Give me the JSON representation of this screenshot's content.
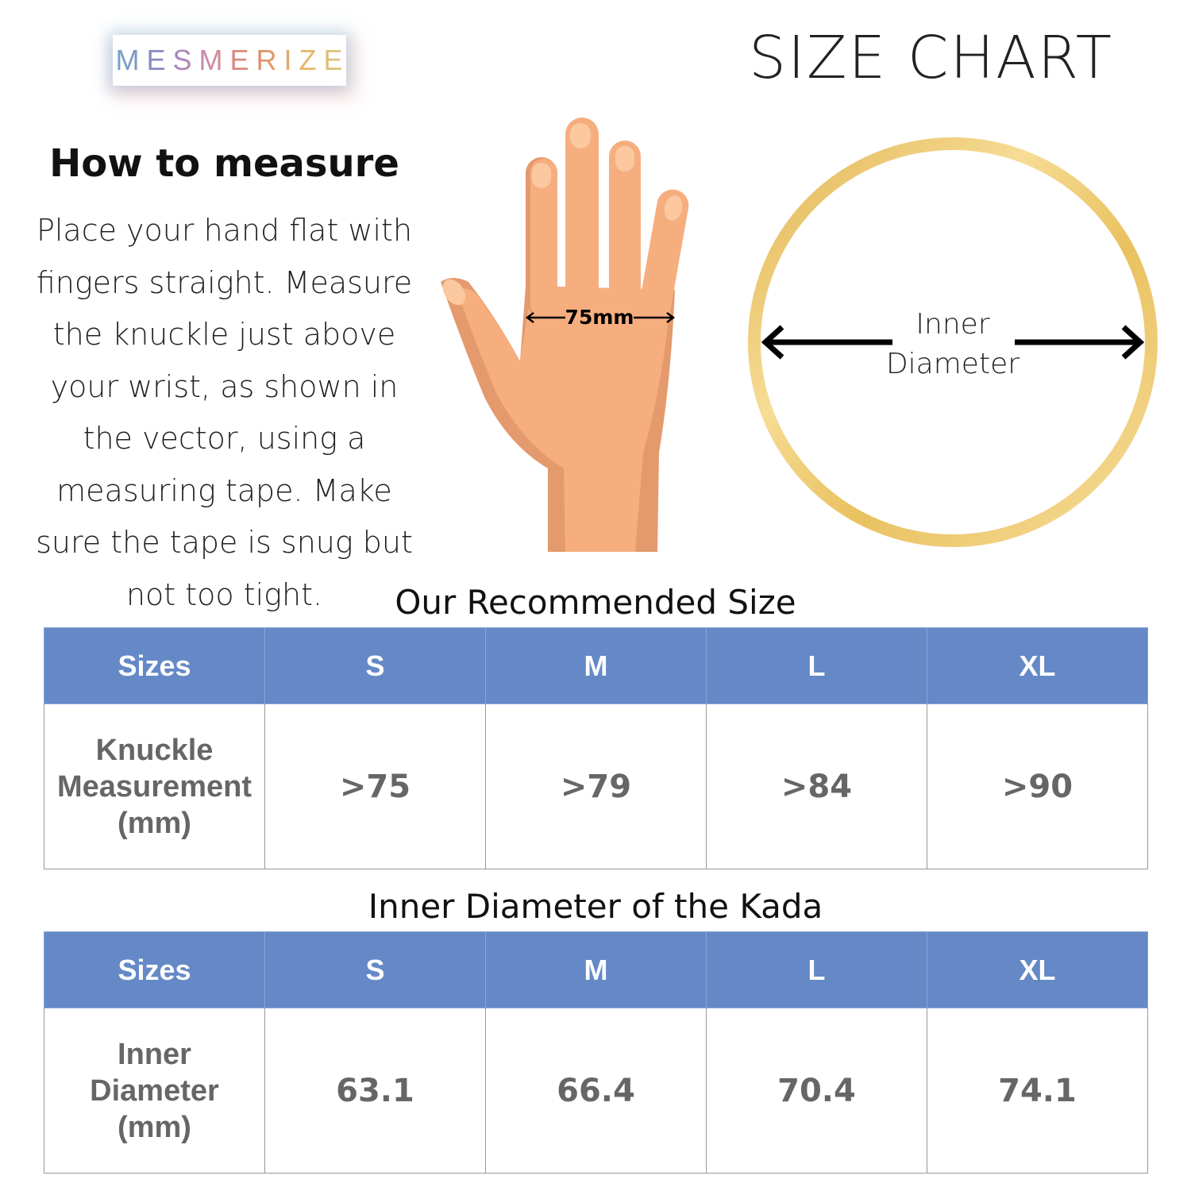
{
  "brand": {
    "logo_text": "MESMERIZE"
  },
  "header": {
    "title": "SIZE CHART"
  },
  "howto": {
    "heading": "How to measure",
    "text": "Place your hand flat with fingers straight. Measure the knuckle just above your wrist, as shown in the vector, using a measuring tape. Make sure the tape is snug but not too tight."
  },
  "hand": {
    "measurement_label": "75mm"
  },
  "ring": {
    "label_line1": "Inner",
    "label_line2": "Diameter"
  },
  "colors": {
    "header_blue": "#6489c6",
    "skin": "#f6ae7f",
    "skin_shadow": "#e49a6d",
    "gold": "#e9c15f"
  },
  "table1": {
    "title": "Our Recommended Size",
    "headers": [
      "Sizes",
      "S",
      "M",
      "L",
      "XL"
    ],
    "row_label": [
      "Knuckle",
      "Measurement",
      "(mm)"
    ],
    "values": [
      ">75",
      ">79",
      ">84",
      ">90"
    ]
  },
  "table2": {
    "title": "Inner Diameter of the Kada",
    "headers": [
      "Sizes",
      "S",
      "M",
      "L",
      "XL"
    ],
    "row_label": [
      "Inner",
      "Diameter",
      "(mm)"
    ],
    "values": [
      "63.1",
      "66.4",
      "70.4",
      "74.1"
    ]
  }
}
